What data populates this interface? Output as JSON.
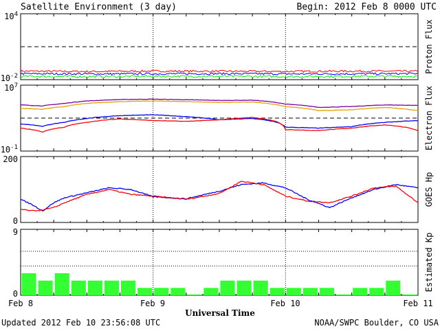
{
  "header": {
    "title": "Satellite Environment (3 day)",
    "begin": "Begin:  2012 Feb 8 0000 UTC"
  },
  "footer": {
    "updated": "Updated 2012 Feb 10 23:56:08 UTC",
    "credit": "NOAA/SWPC Boulder, CO USA"
  },
  "colors": {
    "red": "#ff0000",
    "blue": "#0000ff",
    "green": "#00ee00",
    "purple": "#7a00a0",
    "orange": "#e8a000",
    "kp_bar": "#33ff33"
  },
  "chart_data": [
    {
      "type": "line",
      "name": "proton",
      "ylabel": "Proton Flux",
      "scale": "log",
      "yrange": [
        0.01,
        10000
      ],
      "y_ticks": [
        {
          "base": "10",
          "exp": "4",
          "value": 10000
        },
        {
          "base": "10",
          "exp": "-2",
          "value": 0.01
        }
      ],
      "threshold": 10,
      "series": [
        {
          "color": "red",
          "x": [
            0,
            12,
            24,
            36,
            48,
            60,
            72
          ],
          "y": [
            0.06,
            0.055,
            0.06,
            0.058,
            0.056,
            0.06,
            0.058
          ]
        },
        {
          "color": "blue",
          "x": [
            0,
            12,
            24,
            36,
            48,
            60,
            72
          ],
          "y": [
            0.035,
            0.033,
            0.034,
            0.035,
            0.033,
            0.034,
            0.035
          ]
        },
        {
          "color": "green",
          "x": [
            0,
            12,
            24,
            36,
            48,
            60,
            72
          ],
          "y": [
            0.02,
            0.019,
            0.02,
            0.02,
            0.019,
            0.02,
            0.02
          ]
        }
      ]
    },
    {
      "type": "line",
      "name": "electron",
      "ylabel": "Electron Flux",
      "scale": "log",
      "yrange": [
        0.1,
        10000000
      ],
      "y_ticks": [
        {
          "base": "10",
          "exp": "7",
          "value": 10000000
        },
        {
          "base": "10",
          "exp": "-1",
          "value": 0.1
        }
      ],
      "threshold": 1000,
      "series": [
        {
          "color": "purple",
          "x": [
            0,
            4,
            8,
            12,
            18,
            24,
            30,
            36,
            42,
            48,
            54,
            60,
            66,
            72
          ],
          "y": [
            40000,
            30000,
            60000,
            120000,
            180000,
            200000,
            170000,
            140000,
            150000,
            50000,
            20000,
            25000,
            40000,
            35000
          ]
        },
        {
          "color": "orange",
          "x": [
            0,
            4,
            8,
            12,
            18,
            24,
            30,
            36,
            42,
            48,
            54,
            60,
            66,
            72
          ],
          "y": [
            15000,
            12000,
            25000,
            60000,
            100000,
            120000,
            100000,
            80000,
            90000,
            25000,
            8000,
            10000,
            20000,
            8000
          ]
        },
        {
          "color": "blue",
          "x": [
            0,
            4,
            8,
            12,
            18,
            24,
            30,
            36,
            42,
            48,
            54,
            60,
            66,
            72
          ],
          "y": [
            200,
            100,
            300,
            900,
            2000,
            2500,
            1500,
            600,
            900,
            80,
            60,
            90,
            300,
            500
          ]
        },
        {
          "color": "red",
          "x": [
            0,
            4,
            8,
            12,
            18,
            24,
            30,
            36,
            42,
            48,
            54,
            60,
            66,
            72
          ],
          "y": [
            60,
            20,
            80,
            300,
            800,
            500,
            400,
            600,
            1200,
            40,
            30,
            60,
            150,
            30
          ]
        }
      ]
    },
    {
      "type": "line",
      "name": "goes_hp",
      "ylabel": "GOES Hp",
      "scale": "linear",
      "yrange": [
        0,
        200
      ],
      "y_ticks": [
        {
          "label": "200",
          "value": 200
        },
        {
          "label": "0",
          "value": 0
        }
      ],
      "series": [
        {
          "color": "blue",
          "x": [
            0,
            2,
            4,
            6,
            8,
            12,
            16,
            20,
            24,
            30,
            36,
            40,
            44,
            48,
            52,
            56,
            60,
            64,
            68,
            72
          ],
          "y": [
            70,
            55,
            35,
            60,
            75,
            90,
            105,
            100,
            78,
            72,
            95,
            115,
            120,
            105,
            70,
            45,
            75,
            100,
            115,
            105
          ]
        },
        {
          "color": "red",
          "x": [
            0,
            2,
            4,
            6,
            8,
            12,
            16,
            20,
            24,
            30,
            36,
            40,
            44,
            48,
            52,
            56,
            60,
            64,
            68,
            72
          ],
          "y": [
            40,
            35,
            38,
            45,
            60,
            85,
            100,
            85,
            80,
            70,
            88,
            125,
            115,
            80,
            65,
            60,
            80,
            105,
            110,
            60
          ]
        }
      ]
    },
    {
      "type": "bar",
      "name": "kp",
      "ylabel": "Estimated Kp",
      "yrange": [
        0,
        9
      ],
      "y_ticks": [
        {
          "label": "9",
          "value": 9
        },
        {
          "label": "0",
          "value": 0
        }
      ],
      "gridlines": [
        4,
        6
      ],
      "values": [
        3.0,
        2.0,
        3.0,
        2.0,
        2.0,
        2.0,
        2.0,
        1.0,
        1.0,
        1.0,
        0.1,
        1.0,
        2.0,
        2.0,
        2.0,
        1.0,
        1.0,
        1.0,
        1.0,
        0.1,
        1.0,
        1.0,
        2.0,
        0.1
      ]
    }
  ],
  "x_axis": {
    "label": "Universal Time",
    "ticks": [
      "Feb 8",
      "Feb 9",
      "Feb 10",
      "Feb 11"
    ],
    "tick_hours": [
      0,
      24,
      48,
      72
    ],
    "day_lines_hours": [
      24,
      48
    ],
    "range_hours": [
      0,
      72
    ]
  }
}
